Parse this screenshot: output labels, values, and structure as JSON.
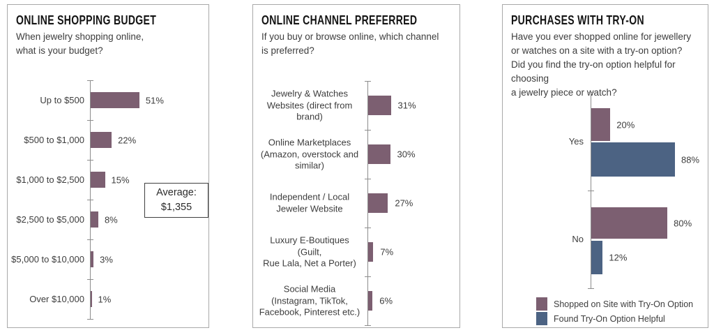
{
  "colors": {
    "purple": "#7C5F71",
    "blue": "#4C6383",
    "axis": "#8c8c8c",
    "panel_border": "#a9a9a9",
    "title_text": "#141414",
    "body_text": "#3d3d3d"
  },
  "panels": [
    {
      "title": "ONLINE SHOPPING BUDGET",
      "subtitle": "When jewelry shopping online,\nwhat is your budget?"
    },
    {
      "title": "ONLINE CHANNEL PREFERRED",
      "subtitle": "If you buy or browse online, which channel\nis preferred?"
    },
    {
      "title": "PURCHASES WITH TRY-ON",
      "subtitle": "Have you ever shopped online for jewellery\nor watches on a site with a try-on option?\nDid you find the try-on option helpful for choosing\na jewelry piece or watch?"
    }
  ],
  "chart_data": [
    {
      "type": "bar",
      "orientation": "horizontal",
      "title": "ONLINE SHOPPING BUDGET",
      "categories": [
        "Up to $500",
        "$500 to $1,000",
        "$1,000 to $2,500",
        "$2,500 to $5,000",
        "$5,000 to $10,000",
        "Over $10,000"
      ],
      "values": [
        51,
        22,
        15,
        8,
        3,
        1
      ],
      "value_labels": [
        "51%",
        "22%",
        "15%",
        "8%",
        "3%",
        "1%"
      ],
      "bar_color": "#7C5F71",
      "annotation": "Average:\n$1,355",
      "xlim": [
        0,
        100
      ],
      "grid": false,
      "legend": "none"
    },
    {
      "type": "bar",
      "orientation": "horizontal",
      "title": "ONLINE CHANNEL PREFERRED",
      "categories": [
        "Jewelry & Watches\nWebsites (direct from\nbrand)",
        "Online Marketplaces\n(Amazon, overstock and\nsimilar)",
        "Independent / Local\nJeweler Website",
        "Luxury E-Boutiques (Guilt,\nRue Lala, Net a Porter)",
        "Social Media\n(Instagram, TikTok,\nFacebook, Pinterest etc.)"
      ],
      "values": [
        31,
        30,
        27,
        7,
        6
      ],
      "value_labels": [
        "31%",
        "30%",
        "27%",
        "7%",
        "6%"
      ],
      "bar_color": "#7C5F71",
      "xlim": [
        0,
        100
      ],
      "grid": false,
      "legend": "none"
    },
    {
      "type": "bar",
      "orientation": "horizontal",
      "grouped": true,
      "title": "PURCHASES WITH TRY-ON",
      "categories": [
        "Yes",
        "No"
      ],
      "series": [
        {
          "name": "Shopped on Site with Try-On Option",
          "color": "#7C5F71",
          "values": [
            20,
            80
          ],
          "value_labels": [
            "20%",
            "80%"
          ]
        },
        {
          "name": "Found Try-On Option Helpful",
          "color": "#4C6383",
          "values": [
            88,
            12
          ],
          "value_labels": [
            "88%",
            "12%"
          ]
        }
      ],
      "xlim": [
        0,
        100
      ],
      "grid": false,
      "legend": "bottom-left"
    }
  ]
}
